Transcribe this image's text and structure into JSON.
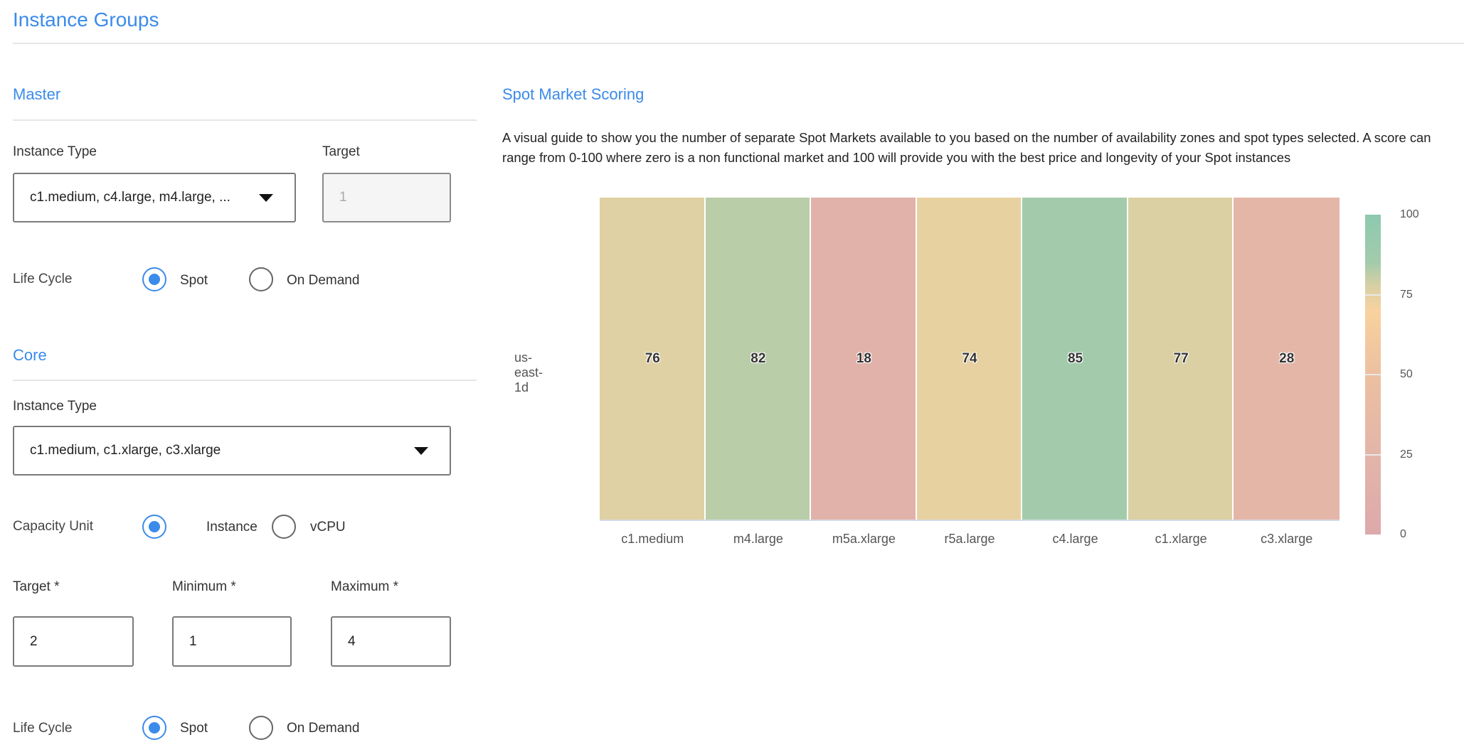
{
  "page": {
    "title": "Instance Groups"
  },
  "master": {
    "heading": "Master",
    "instance_type_label": "Instance Type",
    "instance_type_value": "c1.medium, c4.large, m4.large, ...",
    "target_label": "Target",
    "target_value": "1",
    "life_cycle_label": "Life Cycle",
    "life_cycle_options": [
      {
        "label": "Spot",
        "selected": true
      },
      {
        "label": "On Demand",
        "selected": false
      }
    ]
  },
  "core": {
    "heading": "Core",
    "instance_type_label": "Instance Type",
    "instance_type_value": "c1.medium, c1.xlarge, c3.xlarge",
    "capacity_unit_label": "Capacity Unit",
    "capacity_unit_options": [
      {
        "label": "Instance",
        "selected": true
      },
      {
        "label": "vCPU",
        "selected": false
      }
    ],
    "target_label": "Target *",
    "target_value": "2",
    "minimum_label": "Minimum *",
    "minimum_value": "1",
    "maximum_label": "Maximum *",
    "maximum_value": "4",
    "life_cycle_label": "Life Cycle",
    "life_cycle_options": [
      {
        "label": "Spot",
        "selected": true
      },
      {
        "label": "On Demand",
        "selected": false
      }
    ]
  },
  "spot": {
    "heading": "Spot Market Scoring",
    "description": "A visual guide to show you the number of separate Spot Markets available to you based on the number of availability zones and spot types selected. A score can range from 0-100 where zero is a non functional market and 100 will provide you with the best price and longevity of your Spot instances"
  },
  "chart_data": {
    "type": "heatmap",
    "x": [
      "c1.medium",
      "m4.large",
      "m5a.xlarge",
      "r5a.large",
      "c4.large",
      "c1.xlarge",
      "c3.xlarge"
    ],
    "y": [
      "us-east-1d"
    ],
    "z": [
      [
        76,
        82,
        18,
        74,
        85,
        77,
        28
      ]
    ],
    "zlim": [
      0,
      100
    ],
    "colorbar_ticks": [
      "100",
      "75",
      "50",
      "25",
      "0"
    ],
    "colorscale": [
      [
        0,
        "#dda9ab"
      ],
      [
        25,
        "#e3b5a9"
      ],
      [
        50,
        "#ecc0a0"
      ],
      [
        70,
        "#f8d29e"
      ],
      [
        78,
        "#d6d0a4"
      ],
      [
        85,
        "#a3cbab"
      ],
      [
        100,
        "#8ccab0"
      ]
    ],
    "show_values": true
  },
  "colors": {
    "accent": "#3b8bea"
  }
}
